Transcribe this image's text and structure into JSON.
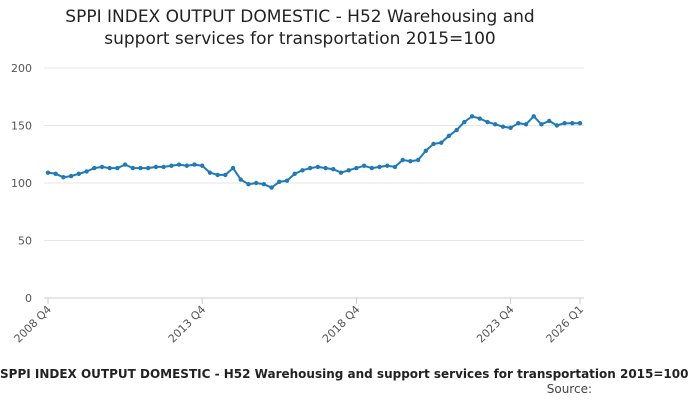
{
  "chart_data": {
    "type": "line",
    "title_lines": [
      "SPPI INDEX OUTPUT DOMESTIC - H52 Warehousing and",
      "support services for transportation 2015=100"
    ],
    "ylim": [
      0,
      200
    ],
    "y_ticks": [
      0,
      50,
      100,
      150,
      200
    ],
    "x_tick_labels": [
      {
        "index": 0,
        "label": "2008 Q4"
      },
      {
        "index": 20,
        "label": "2013 Q4"
      },
      {
        "index": 40,
        "label": "2018 Q4"
      },
      {
        "index": 60,
        "label": "2023 Q4"
      },
      {
        "index": 69,
        "label": "2026 Q1"
      }
    ],
    "grid": "horizontal",
    "series_color": "#1f7ab8",
    "series": [
      {
        "values": [
          109,
          108,
          105,
          106,
          108,
          110,
          113,
          114,
          113,
          113,
          116,
          113,
          113,
          113,
          114,
          114,
          115,
          116,
          115,
          116,
          115,
          109,
          107,
          107,
          113,
          103,
          99,
          100,
          99,
          96,
          101,
          102,
          108,
          111,
          113,
          114,
          113,
          112,
          109,
          111,
          113,
          115,
          113,
          114,
          115,
          114,
          120,
          119,
          120,
          128,
          134,
          135,
          141,
          146,
          153,
          158,
          156,
          153,
          151,
          149,
          148,
          152,
          151,
          158,
          151,
          154,
          150,
          152,
          152,
          152
        ]
      }
    ]
  },
  "footer": {
    "caption": "SPPI INDEX OUTPUT DOMESTIC - H52 Warehousing and support services for transportation 2015=100",
    "source": "Source:"
  }
}
